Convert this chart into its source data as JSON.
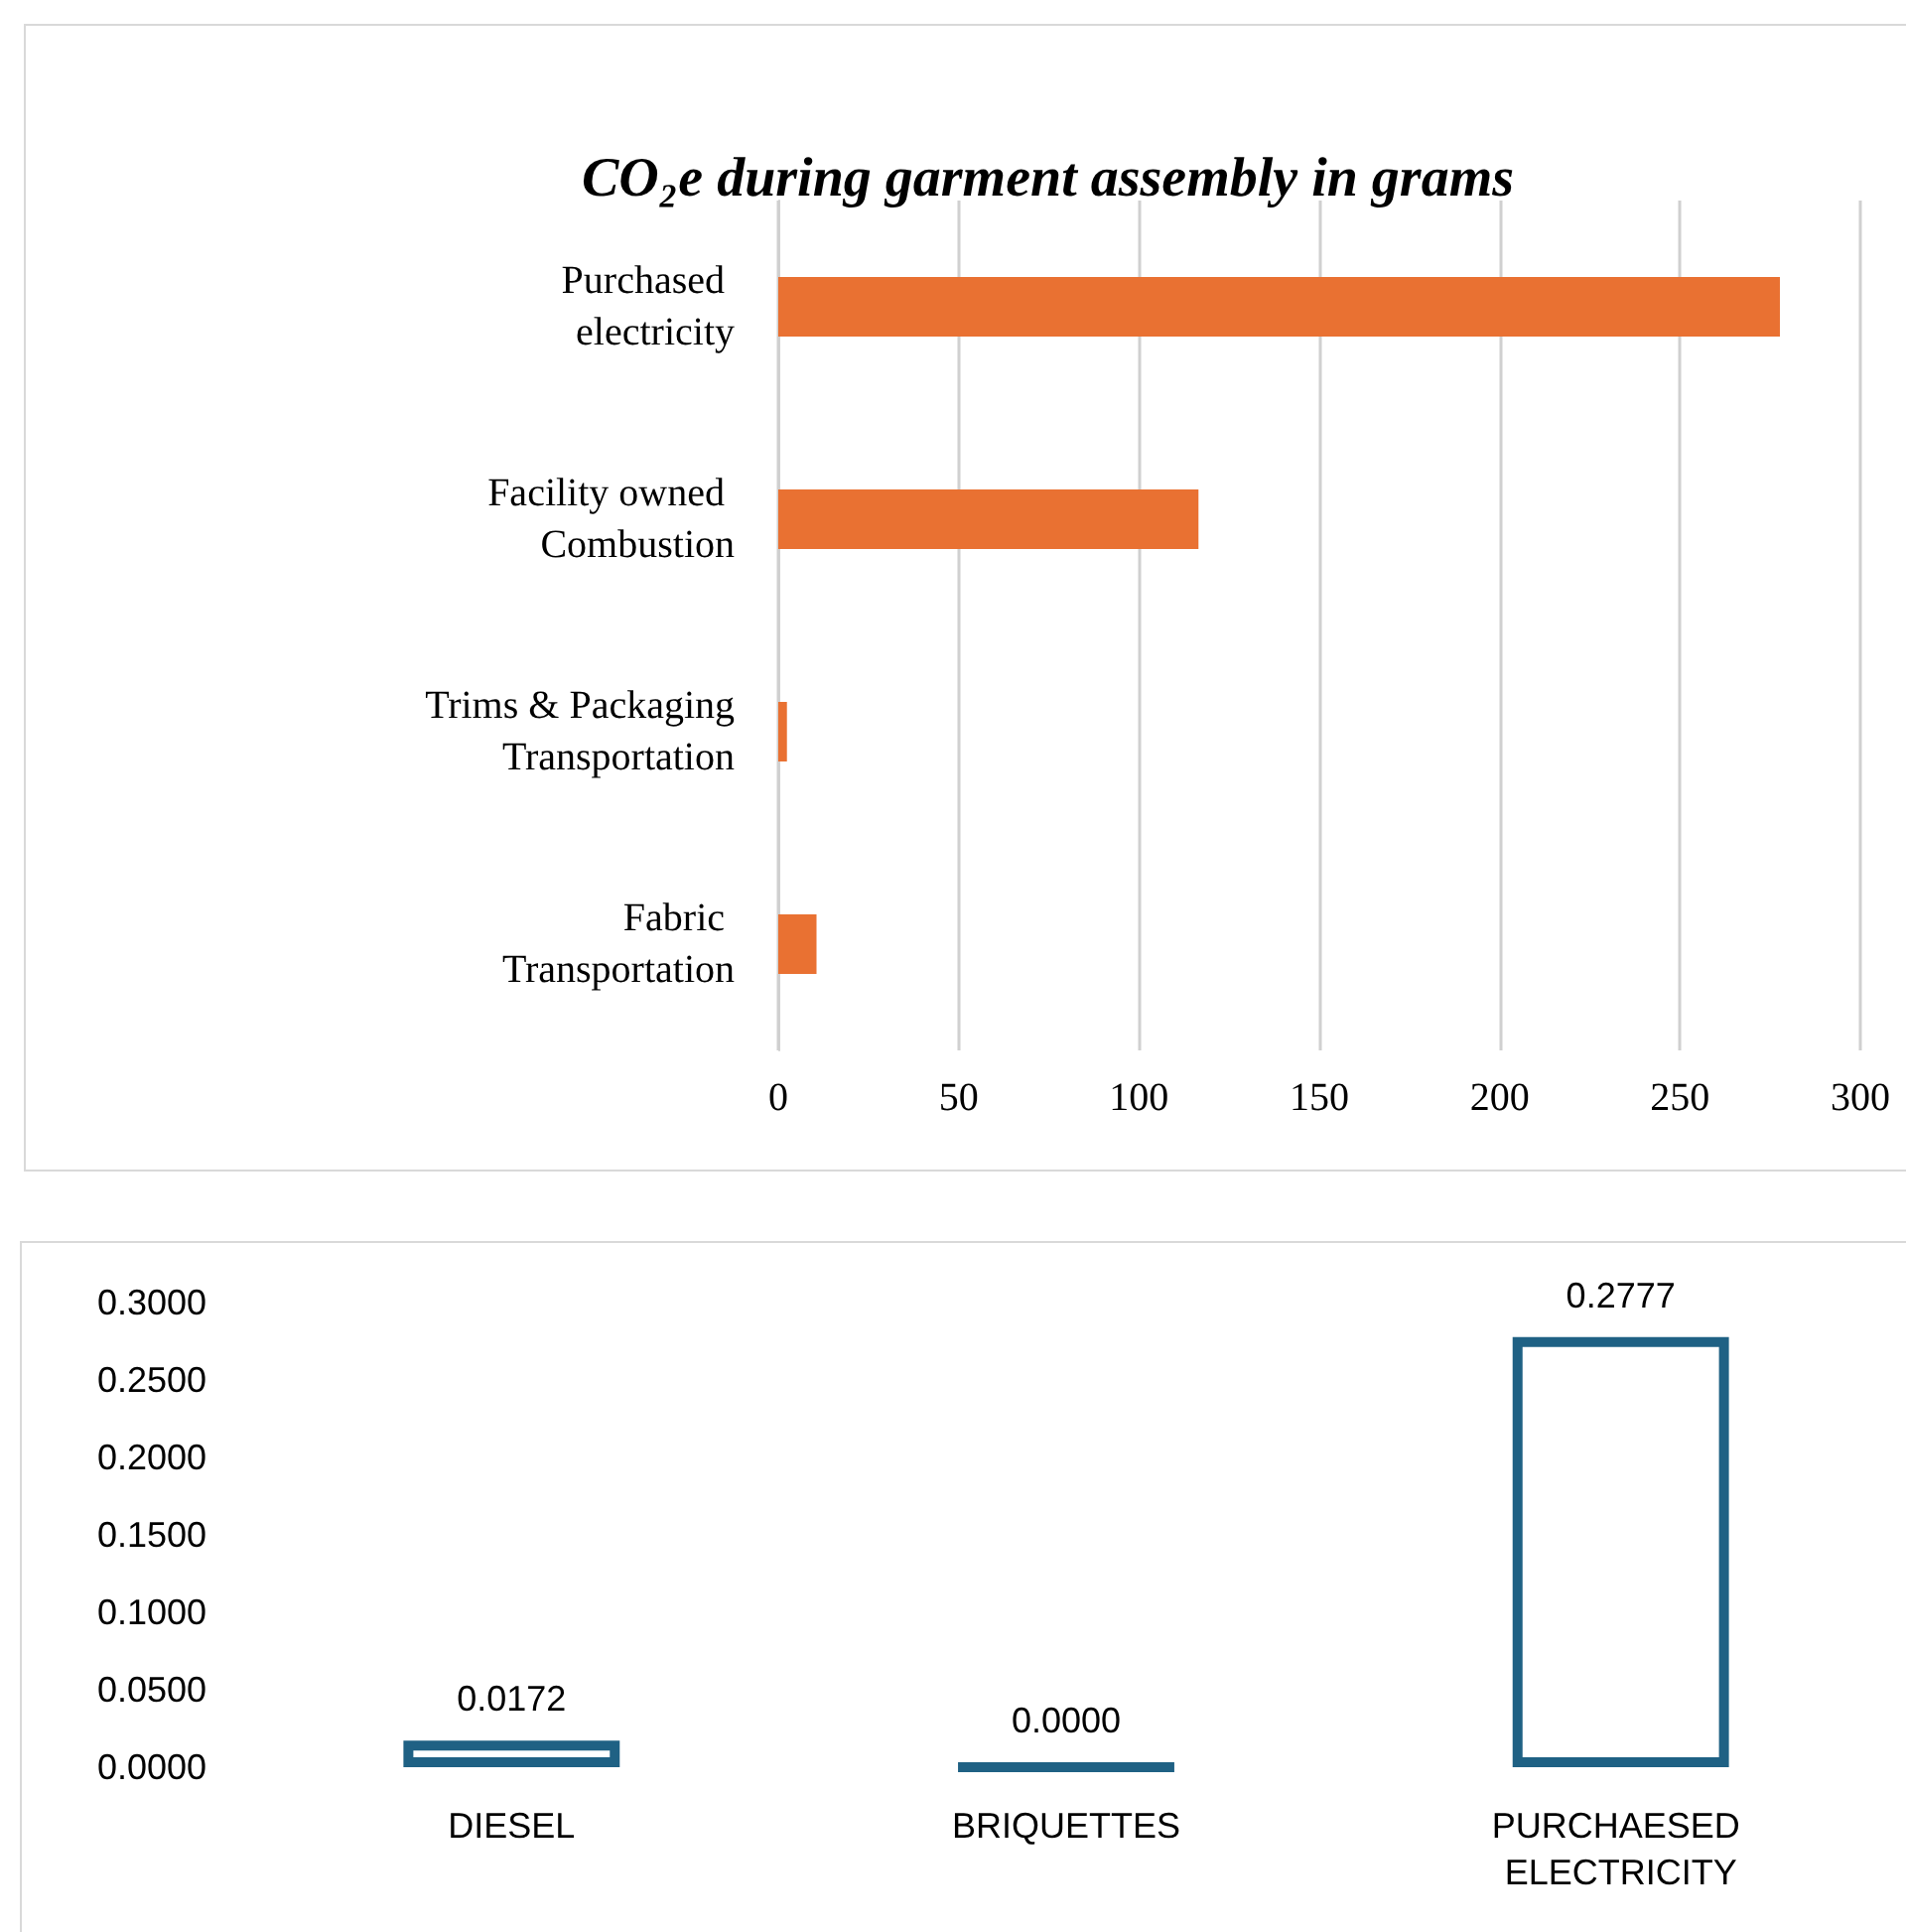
{
  "chart_data": [
    {
      "type": "bar",
      "orientation": "horizontal",
      "title": "CO₂e during garment assembly in grams",
      "categories": [
        "Purchased electricity",
        "Facility owned Combustion",
        "Trims & Packaging Transportation",
        "Fabric Transportation"
      ],
      "values": [
        277.7,
        116.5,
        2.4,
        10.6
      ],
      "color": "#e97132",
      "xlim": [
        0,
        300
      ],
      "xticks": [
        0,
        50,
        100,
        150,
        200,
        250,
        300
      ],
      "grid": "x"
    },
    {
      "type": "bar",
      "categories": [
        "DIESEL",
        "BRIQUETTES",
        "PURCHAESED ELECTRICITY"
      ],
      "values": [
        0.0172,
        0,
        0.2777
      ],
      "color": "#1f6184",
      "value_labels": [
        "0.0172",
        "0.0000",
        "0.2777"
      ],
      "ylim": [
        0,
        0.3
      ],
      "yticks": [
        {
          "value": 0,
          "label": "0.0000"
        },
        {
          "value": 0.05,
          "label": "0.0500"
        },
        {
          "value": 0.1,
          "label": "0.1000"
        },
        {
          "value": 0.15,
          "label": "0.1500"
        },
        {
          "value": 0.2,
          "label": "0.2000"
        },
        {
          "value": 0.25,
          "label": "0.2500"
        },
        {
          "value": 0.3,
          "label": "0.3000"
        }
      ],
      "grid": false
    }
  ]
}
